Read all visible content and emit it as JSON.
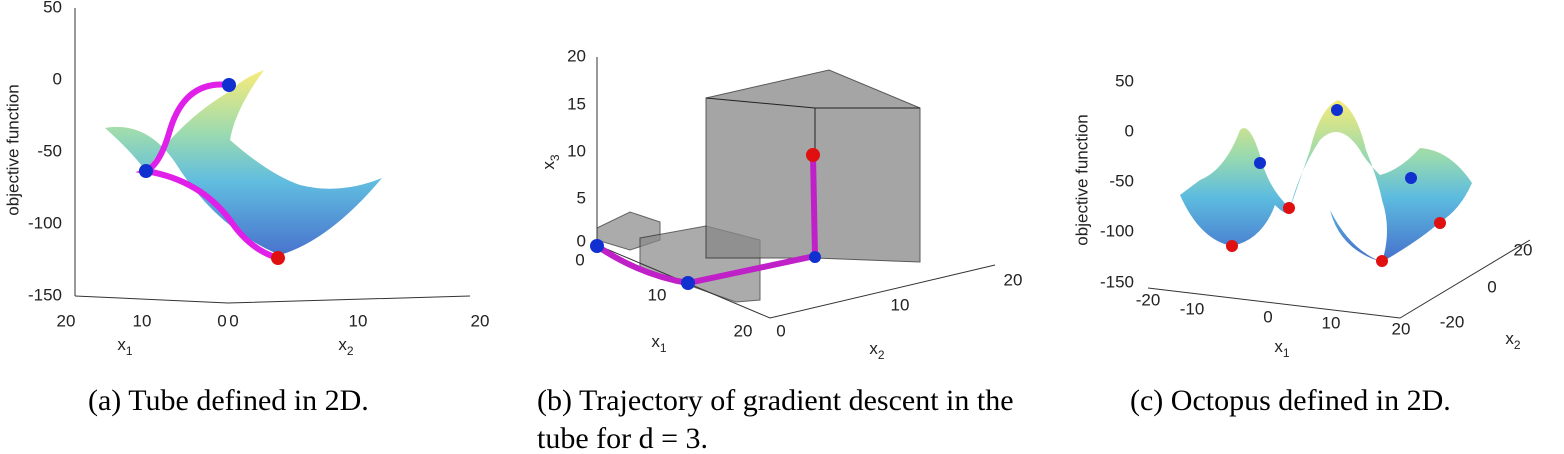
{
  "panels": [
    {
      "caption": "(a) Tube defined in 2D.",
      "z_label": "objective function",
      "z_ticks": [
        50,
        0,
        -50,
        -100,
        -150
      ],
      "x1_label": {
        "base": "x",
        "sub": "1"
      },
      "x1_ticks": [
        20,
        10,
        0
      ],
      "x2_label": {
        "base": "x",
        "sub": "2"
      },
      "x2_ticks": [
        0,
        10,
        20
      ]
    },
    {
      "caption": "(b) Trajectory of gradient descent in the tube for d = 3.",
      "z_label": {
        "base": "x",
        "sub": "3"
      },
      "z_ticks": [
        20,
        15,
        10,
        5,
        0
      ],
      "x1_label": {
        "base": "x",
        "sub": "1"
      },
      "x1_ticks": [
        0,
        10,
        20
      ],
      "x2_label": {
        "base": "x",
        "sub": "2"
      },
      "x2_ticks": [
        0,
        10,
        20
      ]
    },
    {
      "caption": "(c) Octopus defined in 2D.",
      "z_label": "objective function",
      "z_ticks": [
        50,
        0,
        -50,
        -100,
        -150
      ],
      "x1_label": {
        "base": "x",
        "sub": "1"
      },
      "x1_ticks": [
        -20,
        -10,
        0,
        10,
        20
      ],
      "x2_label": {
        "base": "x",
        "sub": "2"
      },
      "x2_ticks": [
        -20,
        0,
        20
      ]
    }
  ]
}
